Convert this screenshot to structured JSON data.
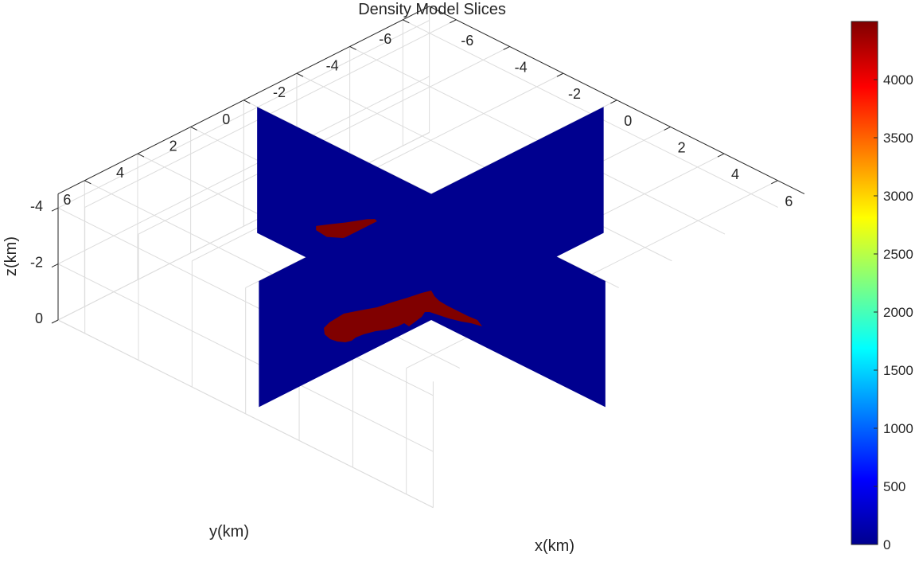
{
  "chart_data": {
    "type": "slice-3d",
    "title": "Density Model Slices",
    "xlabel": "x(km)",
    "ylabel": "y(km)",
    "zlabel": "z(km)",
    "x_ticks": [
      -6,
      -4,
      -2,
      0,
      2,
      4,
      6
    ],
    "y_ticks": [
      -6,
      -4,
      -2,
      0,
      2,
      4,
      6
    ],
    "z_ticks": [
      -4,
      -2,
      0
    ],
    "xlim": [
      -7,
      7
    ],
    "ylim": [
      -7,
      7
    ],
    "zlim": [
      -4.5,
      0
    ],
    "grid": true,
    "colormap": "jet",
    "colorbar": {
      "ticks": [
        0,
        500,
        1000,
        1500,
        2000,
        2500,
        3000,
        3500,
        4000
      ],
      "range": [
        0,
        4500
      ],
      "placement": "right"
    },
    "slices": [
      {
        "plane": "x",
        "value": 0,
        "y_extent": [
          -6.5,
          6.5
        ],
        "z_extent": [
          -4.5,
          0
        ]
      },
      {
        "plane": "y",
        "value": 0,
        "x_extent": [
          -6.5,
          6.5
        ],
        "z_extent": [
          -4.5,
          0
        ]
      }
    ],
    "background_color": "#00008F",
    "anomaly_color": "#800000"
  }
}
